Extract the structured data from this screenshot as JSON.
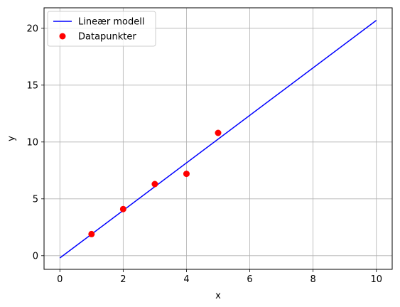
{
  "chart_data": {
    "type": "line",
    "title": "",
    "xlabel": "x",
    "ylabel": "y",
    "xlim": [
      -0.5,
      10.5
    ],
    "ylim": [
      -1.2,
      21.8
    ],
    "xticks": [
      "0",
      "2",
      "4",
      "6",
      "8",
      "10"
    ],
    "yticks": [
      "0",
      "5",
      "10",
      "15",
      "20"
    ],
    "grid": true,
    "legend_position": "top-left",
    "series": [
      {
        "name": "Lineær modell",
        "kind": "line",
        "color": "#0000ff",
        "x": [
          0,
          10
        ],
        "y": [
          -0.2,
          20.7
        ]
      },
      {
        "name": "Datapunkter",
        "kind": "scatter",
        "color": "#ff0000",
        "x": [
          1,
          2,
          3,
          4,
          5
        ],
        "y": [
          1.9,
          4.1,
          6.3,
          7.2,
          10.8
        ]
      }
    ]
  }
}
